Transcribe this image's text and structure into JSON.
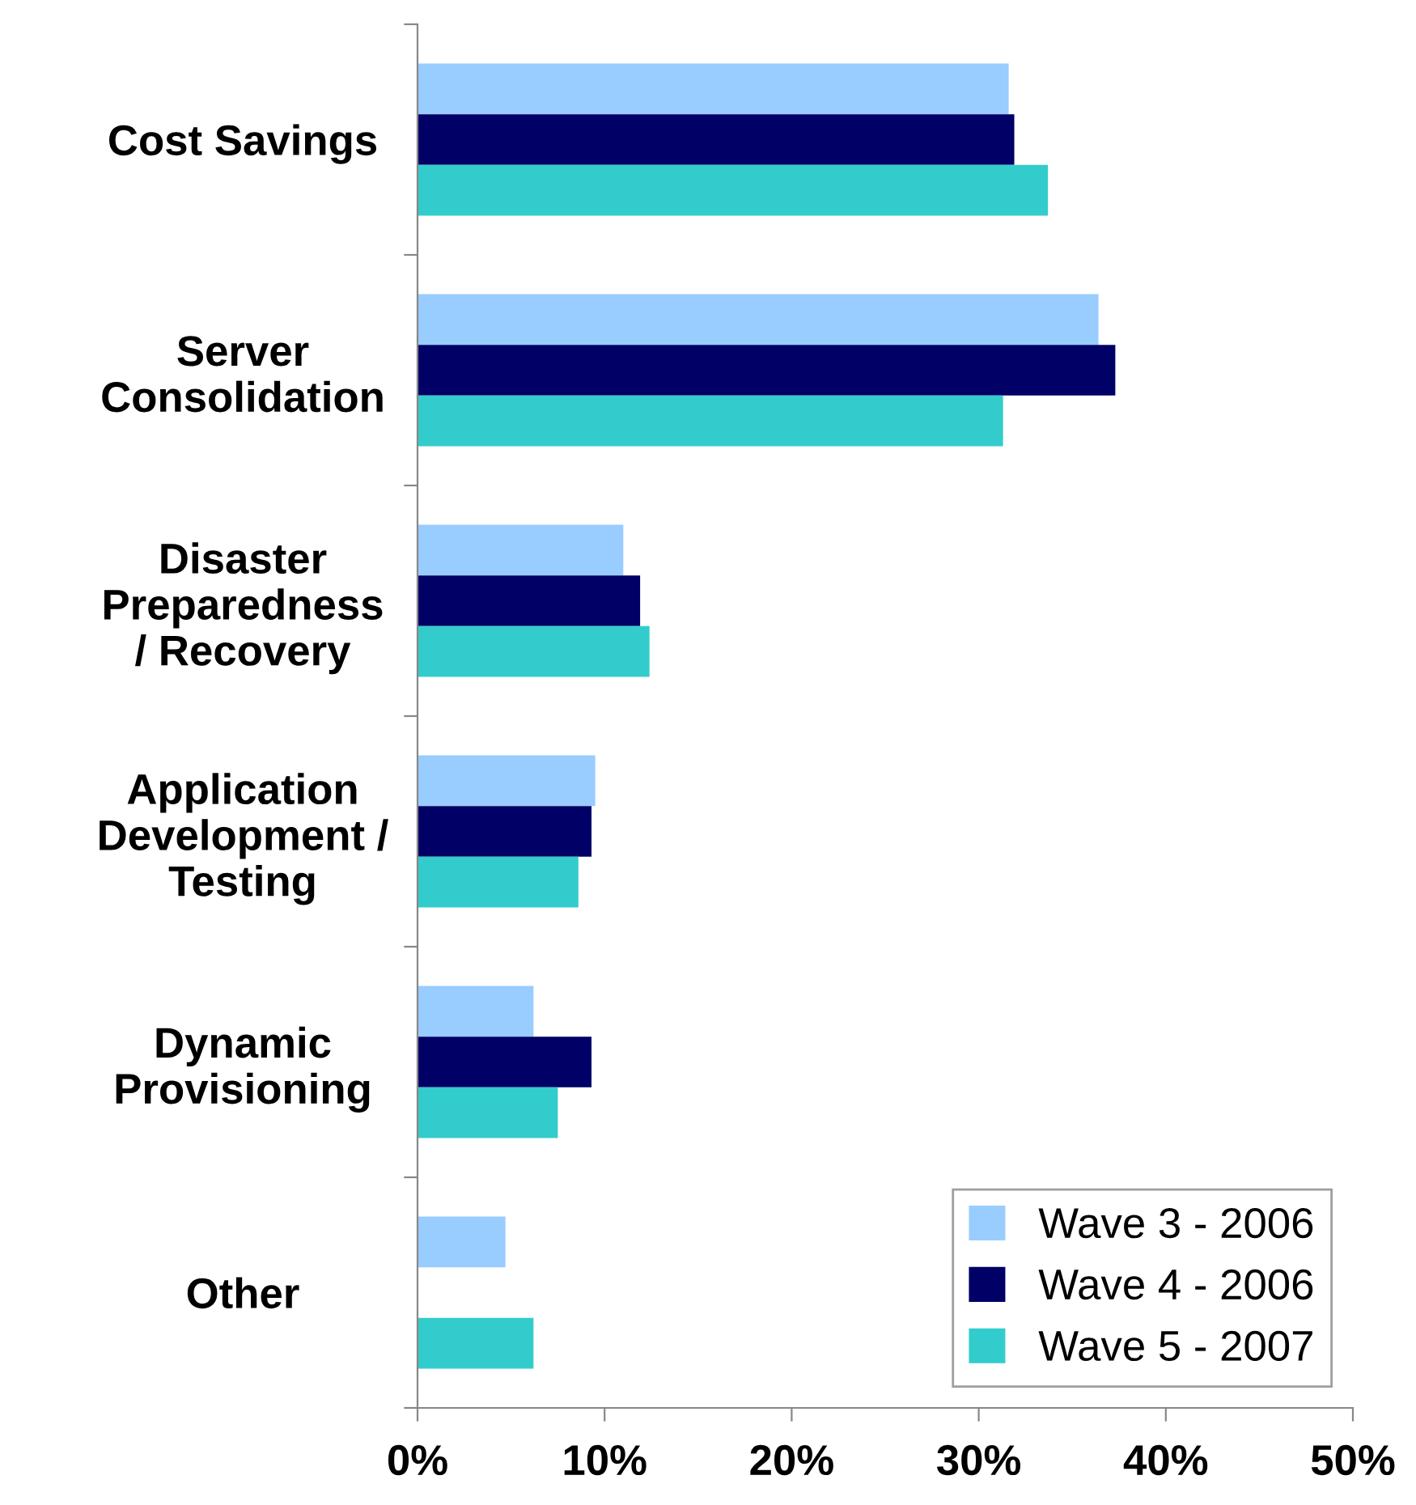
{
  "chart_data": {
    "type": "bar",
    "orientation": "horizontal",
    "categories": [
      "Cost Savings",
      "Server\nConsolidation",
      "Disaster\nPreparedness\n/ Recovery",
      "Application\nDevelopment /\nTesting",
      "Dynamic\nProvisioning",
      "Other"
    ],
    "series": [
      {
        "name": "Wave 3 - 2006",
        "color": "#99ccff",
        "values": [
          31.6,
          36.4,
          11.0,
          9.5,
          6.2,
          4.7
        ]
      },
      {
        "name": "Wave 4 - 2006",
        "color": "#000066",
        "values": [
          31.9,
          37.3,
          11.9,
          9.3,
          9.3,
          null
        ]
      },
      {
        "name": "Wave 5 - 2007",
        "color": "#33cccc",
        "values": [
          33.7,
          31.3,
          12.4,
          8.6,
          7.5,
          6.2
        ]
      }
    ],
    "xlim": [
      0,
      50
    ],
    "xticks": [
      {
        "value": 0,
        "label": "0%"
      },
      {
        "value": 10,
        "label": "10%"
      },
      {
        "value": 20,
        "label": "20%"
      },
      {
        "value": 30,
        "label": "30%"
      },
      {
        "value": 40,
        "label": "40%"
      },
      {
        "value": 50,
        "label": "50%"
      }
    ],
    "grid": false,
    "legend": "bottom right"
  }
}
